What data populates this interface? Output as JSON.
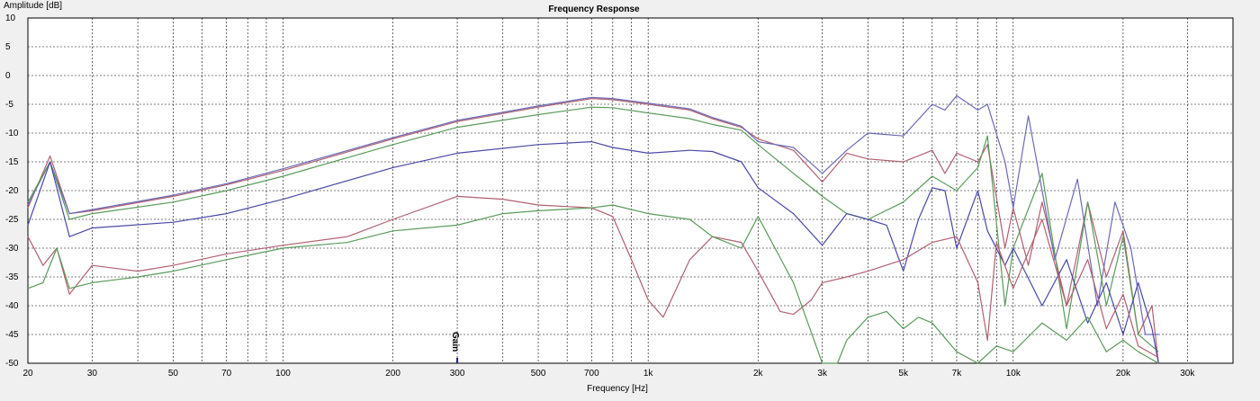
{
  "chart_data": {
    "type": "line",
    "title": "Frequency Response",
    "xlabel": "Frequency [Hz]",
    "ylabel": "Amplitude [dB]",
    "x_scale": "log",
    "xlim": [
      20,
      40000
    ],
    "ylim": [
      -50,
      10
    ],
    "grid": true,
    "x_ticks": [
      {
        "v": 20,
        "label": "20"
      },
      {
        "v": 30,
        "label": "30"
      },
      {
        "v": 50,
        "label": "50"
      },
      {
        "v": 70,
        "label": "70"
      },
      {
        "v": 100,
        "label": "100"
      },
      {
        "v": 200,
        "label": "200"
      },
      {
        "v": 300,
        "label": "300"
      },
      {
        "v": 500,
        "label": "500"
      },
      {
        "v": 700,
        "label": "700"
      },
      {
        "v": 1000,
        "label": "1k"
      },
      {
        "v": 2000,
        "label": "2k"
      },
      {
        "v": 3000,
        "label": "3k"
      },
      {
        "v": 5000,
        "label": "5k"
      },
      {
        "v": 7000,
        "label": "7k"
      },
      {
        "v": 10000,
        "label": "10k"
      },
      {
        "v": 20000,
        "label": "20k"
      },
      {
        "v": 30000,
        "label": "30k"
      }
    ],
    "y_ticks": [
      10,
      5,
      0,
      -5,
      -10,
      -15,
      -20,
      -25,
      -30,
      -35,
      -40,
      -45,
      -50
    ],
    "annotations": [
      {
        "text": "Gain",
        "x": 300
      }
    ],
    "series": [
      {
        "color": "#b06070",
        "values": [
          [
            20,
            -23
          ],
          [
            23,
            -14
          ],
          [
            26,
            -24
          ],
          [
            30,
            -23.5
          ],
          [
            50,
            -21
          ],
          [
            70,
            -19
          ],
          [
            100,
            -16.5
          ],
          [
            200,
            -11
          ],
          [
            300,
            -8
          ],
          [
            500,
            -5.5
          ],
          [
            700,
            -4
          ],
          [
            800,
            -4.2
          ],
          [
            1000,
            -5
          ],
          [
            1300,
            -6
          ],
          [
            1500,
            -7.5
          ],
          [
            1800,
            -9
          ],
          [
            2000,
            -11
          ],
          [
            2500,
            -13
          ],
          [
            3000,
            -18.5
          ],
          [
            3500,
            -13.5
          ],
          [
            4000,
            -14.5
          ],
          [
            5000,
            -15
          ],
          [
            6000,
            -13
          ],
          [
            6500,
            -17
          ],
          [
            7000,
            -13.5
          ],
          [
            8000,
            -15
          ],
          [
            8500,
            -12
          ],
          [
            9500,
            -30
          ],
          [
            10000,
            -23
          ],
          [
            11000,
            -33
          ],
          [
            12000,
            -22
          ],
          [
            14000,
            -40
          ],
          [
            16000,
            -22
          ],
          [
            18000,
            -35
          ],
          [
            20000,
            -27
          ],
          [
            22000,
            -45
          ],
          [
            24000,
            -40
          ],
          [
            25000,
            -50
          ]
        ]
      },
      {
        "color": "#6a6ab8",
        "values": [
          [
            20,
            -22.5
          ],
          [
            23,
            -15
          ],
          [
            26,
            -24
          ],
          [
            30,
            -23.3
          ],
          [
            50,
            -20.8
          ],
          [
            70,
            -18.8
          ],
          [
            100,
            -16.2
          ],
          [
            200,
            -10.8
          ],
          [
            300,
            -7.8
          ],
          [
            500,
            -5.3
          ],
          [
            700,
            -3.8
          ],
          [
            800,
            -4
          ],
          [
            1000,
            -4.8
          ],
          [
            1300,
            -5.8
          ],
          [
            1500,
            -7.3
          ],
          [
            1800,
            -8.8
          ],
          [
            2000,
            -11.5
          ],
          [
            2500,
            -12.5
          ],
          [
            3000,
            -17
          ],
          [
            3500,
            -13
          ],
          [
            4000,
            -10
          ],
          [
            5000,
            -10.5
          ],
          [
            6000,
            -5
          ],
          [
            6500,
            -6
          ],
          [
            7000,
            -3.5
          ],
          [
            8000,
            -6
          ],
          [
            8500,
            -5
          ],
          [
            9500,
            -15
          ],
          [
            10000,
            -23
          ],
          [
            11000,
            -7
          ],
          [
            13000,
            -32
          ],
          [
            15000,
            -18
          ],
          [
            17000,
            -40
          ],
          [
            19000,
            -22
          ],
          [
            21000,
            -30
          ],
          [
            23000,
            -45
          ],
          [
            25000,
            -45
          ]
        ]
      },
      {
        "color": "#5a9a5a",
        "values": [
          [
            20,
            -22
          ],
          [
            23,
            -15
          ],
          [
            26,
            -25
          ],
          [
            30,
            -24
          ],
          [
            50,
            -22
          ],
          [
            70,
            -20
          ],
          [
            100,
            -17.5
          ],
          [
            200,
            -12
          ],
          [
            300,
            -9
          ],
          [
            500,
            -6.8
          ],
          [
            700,
            -5.5
          ],
          [
            800,
            -5.6
          ],
          [
            1000,
            -6.5
          ],
          [
            1300,
            -7.5
          ],
          [
            1500,
            -8.5
          ],
          [
            1800,
            -9.5
          ],
          [
            2000,
            -12
          ],
          [
            2500,
            -17
          ],
          [
            3000,
            -21
          ],
          [
            3500,
            -24
          ],
          [
            4000,
            -25
          ],
          [
            5000,
            -22
          ],
          [
            6000,
            -17.5
          ],
          [
            7000,
            -20
          ],
          [
            8000,
            -16
          ],
          [
            8500,
            -10.5
          ],
          [
            9500,
            -40
          ],
          [
            10000,
            -30
          ],
          [
            12000,
            -17
          ],
          [
            14000,
            -44
          ],
          [
            16000,
            -22
          ],
          [
            18000,
            -40
          ],
          [
            20000,
            -28
          ],
          [
            22000,
            -45
          ],
          [
            25000,
            -48
          ]
        ]
      },
      {
        "color": "#4848a8",
        "values": [
          [
            20,
            -26
          ],
          [
            23,
            -15
          ],
          [
            26,
            -28
          ],
          [
            30,
            -26.5
          ],
          [
            50,
            -25.5
          ],
          [
            70,
            -24
          ],
          [
            100,
            -21.5
          ],
          [
            200,
            -16
          ],
          [
            300,
            -13.5
          ],
          [
            500,
            -12
          ],
          [
            700,
            -11.5
          ],
          [
            800,
            -12.5
          ],
          [
            1000,
            -13.5
          ],
          [
            1300,
            -13
          ],
          [
            1500,
            -13.2
          ],
          [
            1800,
            -15
          ],
          [
            2000,
            -19.5
          ],
          [
            2500,
            -24
          ],
          [
            3000,
            -29.5
          ],
          [
            3500,
            -24
          ],
          [
            4000,
            -25
          ],
          [
            4500,
            -26
          ],
          [
            5000,
            -34
          ],
          [
            5500,
            -25
          ],
          [
            6000,
            -19.5
          ],
          [
            6500,
            -20
          ],
          [
            7000,
            -30
          ],
          [
            8000,
            -20
          ],
          [
            8500,
            -27
          ],
          [
            9500,
            -33
          ],
          [
            10000,
            -30
          ],
          [
            12000,
            -40
          ],
          [
            14000,
            -32
          ],
          [
            16000,
            -43
          ],
          [
            18000,
            -36
          ],
          [
            20000,
            -45
          ],
          [
            22000,
            -36
          ],
          [
            24000,
            -44
          ],
          [
            25000,
            -50
          ]
        ]
      },
      {
        "color": "#b06070",
        "values": [
          [
            20,
            -28
          ],
          [
            22,
            -33
          ],
          [
            24,
            -30
          ],
          [
            26,
            -38
          ],
          [
            30,
            -33
          ],
          [
            40,
            -34
          ],
          [
            50,
            -33
          ],
          [
            70,
            -31
          ],
          [
            100,
            -29.5
          ],
          [
            150,
            -28
          ],
          [
            200,
            -25
          ],
          [
            300,
            -21
          ],
          [
            400,
            -21.5
          ],
          [
            500,
            -22.5
          ],
          [
            700,
            -23
          ],
          [
            800,
            -24.5
          ],
          [
            900,
            -32
          ],
          [
            1000,
            -39
          ],
          [
            1100,
            -42
          ],
          [
            1300,
            -32
          ],
          [
            1500,
            -28
          ],
          [
            1800,
            -29
          ],
          [
            2000,
            -34
          ],
          [
            2300,
            -41
          ],
          [
            2500,
            -41.5
          ],
          [
            2800,
            -39
          ],
          [
            3000,
            -36
          ],
          [
            3500,
            -35
          ],
          [
            4000,
            -34
          ],
          [
            5000,
            -32
          ],
          [
            6000,
            -29
          ],
          [
            7000,
            -28
          ],
          [
            8000,
            -36
          ],
          [
            8500,
            -46
          ],
          [
            9000,
            -29
          ],
          [
            10000,
            -37
          ],
          [
            12000,
            -25
          ],
          [
            14000,
            -40
          ],
          [
            16000,
            -32
          ],
          [
            18000,
            -44
          ],
          [
            20000,
            -38
          ],
          [
            22000,
            -47
          ],
          [
            25000,
            -49
          ]
        ]
      },
      {
        "color": "#5a9a5a",
        "values": [
          [
            20,
            -37
          ],
          [
            22,
            -36
          ],
          [
            24,
            -30
          ],
          [
            26,
            -37
          ],
          [
            30,
            -36
          ],
          [
            40,
            -35
          ],
          [
            50,
            -34
          ],
          [
            70,
            -32
          ],
          [
            100,
            -30
          ],
          [
            150,
            -29
          ],
          [
            200,
            -27
          ],
          [
            300,
            -26
          ],
          [
            400,
            -24
          ],
          [
            500,
            -23.5
          ],
          [
            700,
            -23
          ],
          [
            800,
            -22.5
          ],
          [
            1000,
            -24
          ],
          [
            1300,
            -25
          ],
          [
            1500,
            -28
          ],
          [
            1800,
            -30
          ],
          [
            2000,
            -24.5
          ],
          [
            2500,
            -36
          ],
          [
            3000,
            -50
          ],
          [
            3300,
            -50
          ],
          [
            3500,
            -46
          ],
          [
            4000,
            -42
          ],
          [
            4500,
            -41
          ],
          [
            5000,
            -44
          ],
          [
            5500,
            -42
          ],
          [
            6000,
            -43
          ],
          [
            7000,
            -48
          ],
          [
            8000,
            -50
          ],
          [
            9000,
            -47
          ],
          [
            10000,
            -48
          ],
          [
            12000,
            -43
          ],
          [
            14000,
            -46
          ],
          [
            16000,
            -42
          ],
          [
            18000,
            -48
          ],
          [
            20000,
            -46
          ],
          [
            22000,
            -48
          ],
          [
            25000,
            -50
          ]
        ]
      }
    ]
  }
}
